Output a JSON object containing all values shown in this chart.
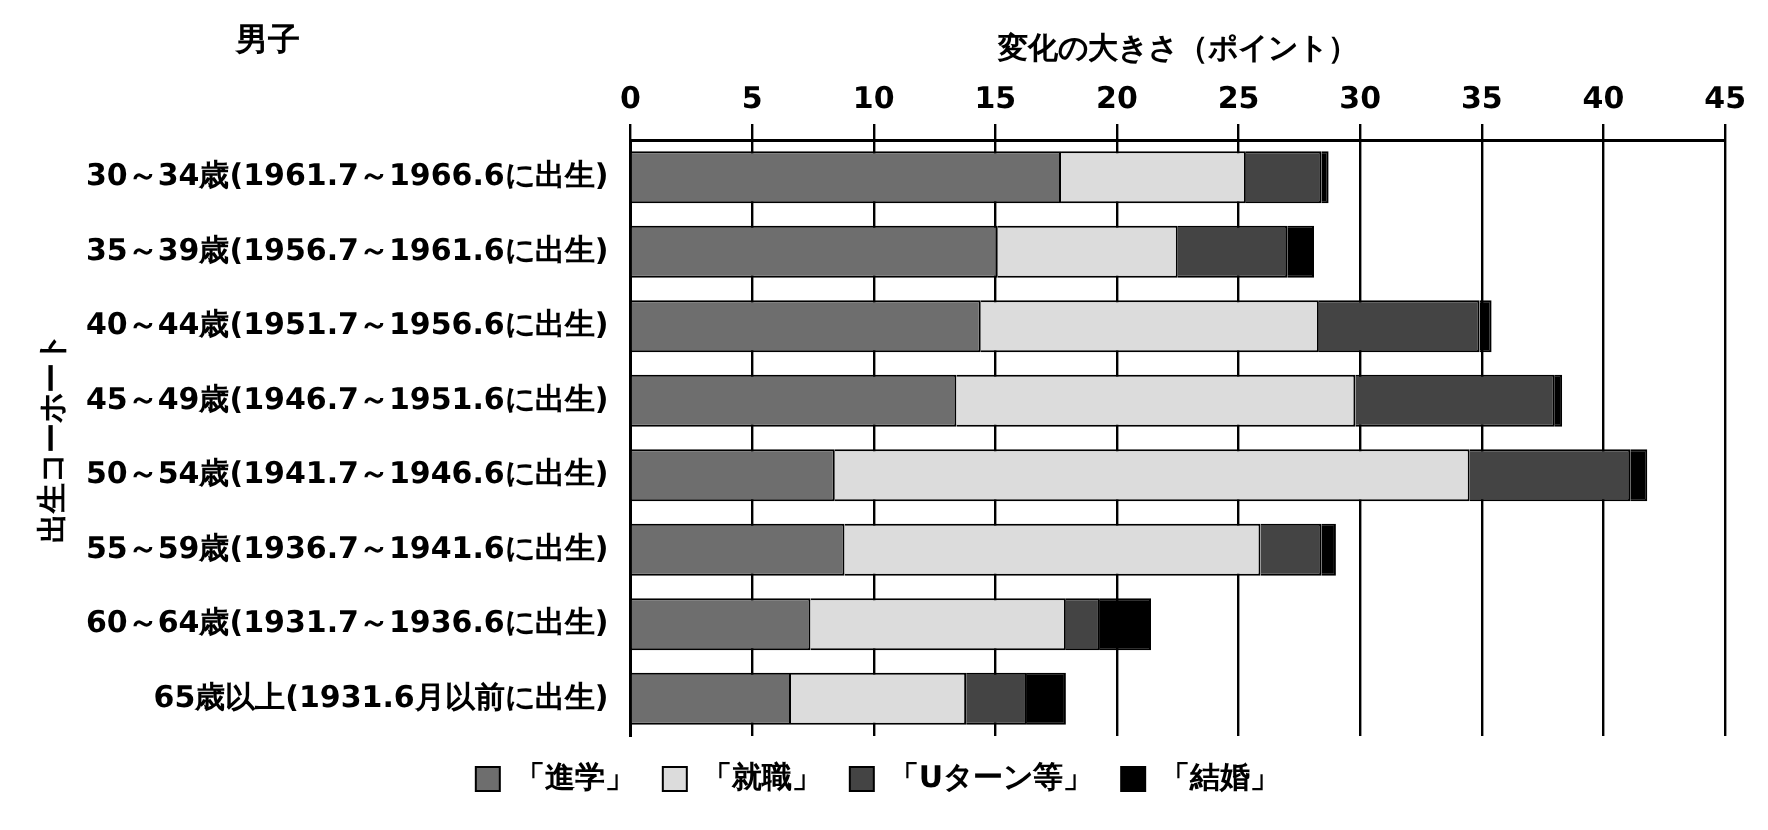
{
  "chart_data": {
    "type": "bar",
    "title": "男子",
    "xlabel": "変化の大きさ（ポイント）",
    "ylabel": "出生コーホート",
    "orientation": "horizontal",
    "stacked": true,
    "categories": [
      "30～34歳(1961.7～1966.6に出生)",
      "35～39歳(1956.7～1961.6に出生)",
      "40～44歳(1951.7～1956.6に出生)",
      "45～49歳(1946.7～1951.6に出生)",
      "50～54歳(1941.7～1946.6に出生)",
      "55～59歳(1936.7～1941.6に出生)",
      "60～64歳(1931.7～1936.6に出生)",
      "65歳以上(1931.6月以前に出生)"
    ],
    "series": [
      {
        "name": "「進学」",
        "color": "#6e6e6e",
        "values": [
          17.7,
          15.1,
          14.4,
          13.4,
          8.4,
          8.8,
          7.4,
          6.6
        ]
      },
      {
        "name": "「就職」",
        "color": "#dcdcdc",
        "values": [
          7.6,
          7.4,
          13.9,
          16.4,
          26.1,
          17.1,
          10.5,
          7.2
        ]
      },
      {
        "name": "「Uターン等」",
        "color": "#444444",
        "values": [
          3.1,
          4.5,
          6.6,
          8.2,
          6.6,
          2.5,
          1.4,
          2.5
        ]
      },
      {
        "name": "「結婚」",
        "color": "#000000",
        "values": [
          0.3,
          1.1,
          0.5,
          0.3,
          0.7,
          0.6,
          2.1,
          1.6
        ]
      }
    ],
    "xlim": [
      0,
      45
    ],
    "xticks": [
      0,
      5,
      10,
      15,
      20,
      25,
      30,
      35,
      40,
      45
    ],
    "grid": "x",
    "legend": "bottom"
  }
}
